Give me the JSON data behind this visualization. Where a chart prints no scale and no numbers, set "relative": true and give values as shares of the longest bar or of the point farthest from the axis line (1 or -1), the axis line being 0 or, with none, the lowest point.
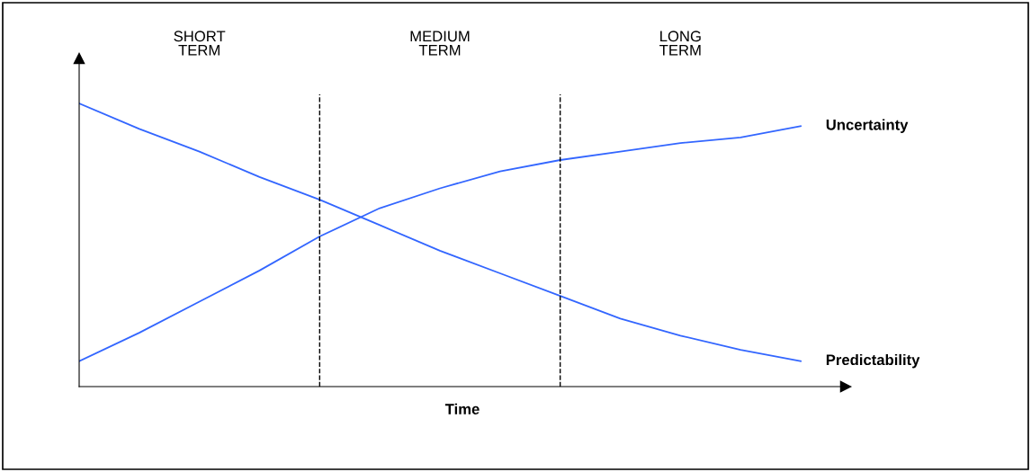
{
  "chart_data": {
    "type": "line",
    "relative": true,
    "xlabel": "Time",
    "categories": [
      null,
      null,
      null,
      null,
      null,
      null,
      null,
      null,
      null,
      null,
      null,
      null,
      null
    ],
    "series": [
      {
        "name": "Uncertainty",
        "color": "#3366ff",
        "values": [
          0.09,
          0.19,
          0.3,
          0.41,
          0.53,
          0.63,
          0.7,
          0.76,
          0.8,
          0.83,
          0.86,
          0.88,
          0.92
        ]
      },
      {
        "name": "Predictability",
        "color": "#3366ff",
        "values": [
          1.0,
          0.91,
          0.83,
          0.74,
          0.66,
          0.57,
          0.48,
          0.4,
          0.32,
          0.24,
          0.18,
          0.13,
          0.09
        ]
      }
    ],
    "annotations": [
      "SHORT\nTERM",
      "MEDIUM\nTERM",
      "LONG\nTERM"
    ],
    "grid": false,
    "legend": false,
    "marker": "none",
    "line_style": "solid"
  }
}
